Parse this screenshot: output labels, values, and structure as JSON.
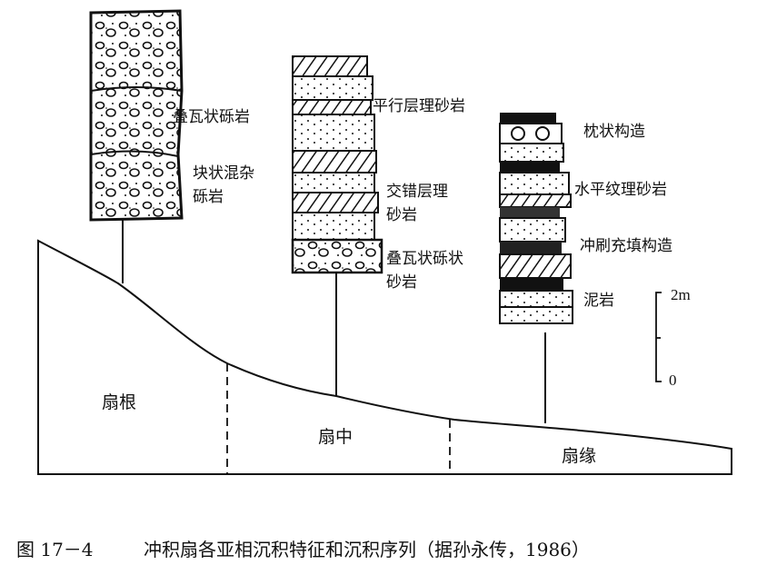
{
  "columns": {
    "fan_root": {
      "labels": [
        "叠瓦状砾岩",
        "块状混杂",
        "砾岩"
      ]
    },
    "fan_middle": {
      "labels": [
        "平行层理砂岩",
        "交错层理",
        "砂岩",
        "叠瓦状砾状",
        "砂岩"
      ]
    },
    "fan_edge": {
      "labels": [
        "枕状构造",
        "水平纹理砂岩",
        "冲刷充填构造",
        "泥岩"
      ]
    }
  },
  "zones": {
    "root": "扇根",
    "middle": "扇中",
    "edge": "扇缘"
  },
  "scale": {
    "top": "2m",
    "bottom": "0"
  },
  "caption": {
    "number": "图 17－4",
    "text": "冲积扇各亚相沉积特征和沉积序列（据孙永传，1986）"
  }
}
